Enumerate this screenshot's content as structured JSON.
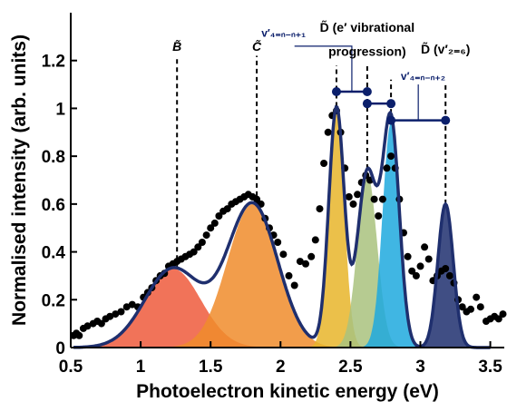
{
  "chart_data": {
    "type": "scatter",
    "xlabel": "Photoelectron kinetic energy (eV)",
    "ylabel": "Normalised intensity (arb. units)",
    "xlim": [
      0.5,
      3.6
    ],
    "ylim": [
      0,
      1.4
    ],
    "x_ticks": [
      "0.5",
      "1",
      "1.5",
      "2",
      "2.5",
      "3",
      "3.5"
    ],
    "y_ticks": [
      "0",
      "0.2",
      "0.4",
      "0.6",
      "0.8",
      "1",
      "1.2"
    ],
    "grid": false,
    "gaussian_components": [
      {
        "color": "#ef5a3c",
        "center": 1.23,
        "width": 0.2,
        "amplitude": 0.33
      },
      {
        "color": "#f08c2c",
        "center": 1.8,
        "width": 0.18,
        "amplitude": 0.6
      },
      {
        "color": "#e8b52a",
        "center": 2.4,
        "width": 0.055,
        "amplitude": 1.0
      },
      {
        "color": "#a9c27e",
        "center": 2.62,
        "width": 0.07,
        "amplitude": 0.73
      },
      {
        "color": "#1fa9de",
        "center": 2.79,
        "width": 0.06,
        "amplitude": 0.94
      },
      {
        "color": "#1f2f6e",
        "center": 3.18,
        "width": 0.055,
        "amplitude": 0.6
      }
    ],
    "experimental_points": [
      [
        0.52,
        0.05
      ],
      [
        0.54,
        0.06
      ],
      [
        0.56,
        0.05
      ],
      [
        0.59,
        0.08
      ],
      [
        0.62,
        0.09
      ],
      [
        0.66,
        0.1
      ],
      [
        0.69,
        0.11
      ],
      [
        0.72,
        0.1
      ],
      [
        0.75,
        0.12
      ],
      [
        0.78,
        0.13
      ],
      [
        0.82,
        0.14
      ],
      [
        0.86,
        0.15
      ],
      [
        0.9,
        0.17
      ],
      [
        0.94,
        0.18
      ],
      [
        0.98,
        0.17
      ],
      [
        1.02,
        0.21
      ],
      [
        1.05,
        0.23
      ],
      [
        1.08,
        0.25
      ],
      [
        1.11,
        0.28
      ],
      [
        1.14,
        0.3
      ],
      [
        1.17,
        0.31
      ],
      [
        1.2,
        0.34
      ],
      [
        1.23,
        0.35
      ],
      [
        1.26,
        0.36
      ],
      [
        1.29,
        0.37
      ],
      [
        1.32,
        0.38
      ],
      [
        1.35,
        0.39
      ],
      [
        1.38,
        0.4
      ],
      [
        1.41,
        0.42
      ],
      [
        1.44,
        0.44
      ],
      [
        1.47,
        0.47
      ],
      [
        1.5,
        0.5
      ],
      [
        1.53,
        0.52
      ],
      [
        1.56,
        0.55
      ],
      [
        1.59,
        0.57
      ],
      [
        1.62,
        0.58
      ],
      [
        1.65,
        0.6
      ],
      [
        1.68,
        0.61
      ],
      [
        1.71,
        0.62
      ],
      [
        1.74,
        0.63
      ],
      [
        1.77,
        0.64
      ],
      [
        1.8,
        0.63
      ],
      [
        1.83,
        0.62
      ],
      [
        1.86,
        0.6
      ],
      [
        1.89,
        0.54
      ],
      [
        1.92,
        0.5
      ],
      [
        1.95,
        0.47
      ],
      [
        1.98,
        0.44
      ],
      [
        2.02,
        0.39
      ],
      [
        2.06,
        0.3
      ],
      [
        2.1,
        0.26
      ],
      [
        2.14,
        0.36
      ],
      [
        2.18,
        0.35
      ],
      [
        2.22,
        0.38
      ],
      [
        2.25,
        0.45
      ],
      [
        2.28,
        0.58
      ],
      [
        2.31,
        0.77
      ],
      [
        2.34,
        0.9
      ],
      [
        2.37,
        0.97
      ],
      [
        2.4,
        0.99
      ],
      [
        2.43,
        0.9
      ],
      [
        2.46,
        0.75
      ],
      [
        2.49,
        0.63
      ],
      [
        2.52,
        0.6
      ],
      [
        2.55,
        0.64
      ],
      [
        2.58,
        0.69
      ],
      [
        2.61,
        0.72
      ],
      [
        2.64,
        0.7
      ],
      [
        2.67,
        0.62
      ],
      [
        2.7,
        0.55
      ],
      [
        2.73,
        0.62
      ],
      [
        2.76,
        0.75
      ],
      [
        2.79,
        0.8
      ],
      [
        2.82,
        0.75
      ],
      [
        2.85,
        0.62
      ],
      [
        2.88,
        0.48
      ],
      [
        2.91,
        0.38
      ],
      [
        2.94,
        0.32
      ],
      [
        2.97,
        0.3
      ],
      [
        3.0,
        0.34
      ],
      [
        3.03,
        0.42
      ],
      [
        3.06,
        0.37
      ],
      [
        3.09,
        0.28
      ],
      [
        3.12,
        0.3
      ],
      [
        3.15,
        0.32
      ],
      [
        3.18,
        0.33
      ],
      [
        3.21,
        0.3
      ],
      [
        3.24,
        0.27
      ],
      [
        3.27,
        0.2
      ],
      [
        3.3,
        0.17
      ],
      [
        3.33,
        0.15
      ],
      [
        3.36,
        0.16
      ],
      [
        3.4,
        0.21
      ],
      [
        3.43,
        0.17
      ],
      [
        3.47,
        0.11
      ],
      [
        3.5,
        0.12
      ],
      [
        3.53,
        0.13
      ],
      [
        3.56,
        0.12
      ],
      [
        3.59,
        0.14
      ]
    ],
    "band_labels": [
      {
        "text": "B̃",
        "x": 1.26
      },
      {
        "text": "C̃",
        "x": 1.83
      }
    ],
    "progression_label_line1": "D̃ (e′ vibrational",
    "progression_label_line2": "progression)",
    "progression_label_x": 2.62,
    "d_tilde_label": "D̃ (v′₂₌₆)",
    "d_tilde_label_x": 3.18,
    "vib_label_1": "v′₄₌ₙ₋ₙ₊₁",
    "vib_label_2": "v′₄₌ₙ₋ₙ₊₂",
    "dashed_line_x": [
      1.26,
      1.83,
      2.4,
      2.62,
      2.79,
      3.18
    ],
    "bracket_1": {
      "x1": 2.4,
      "x2": 2.62,
      "y": 1.07
    },
    "bracket_2": {
      "x1": 2.62,
      "x2": 2.79,
      "y": 1.02
    },
    "bracket_3": {
      "x1": 2.79,
      "x2": 3.18,
      "y": 0.95
    }
  }
}
